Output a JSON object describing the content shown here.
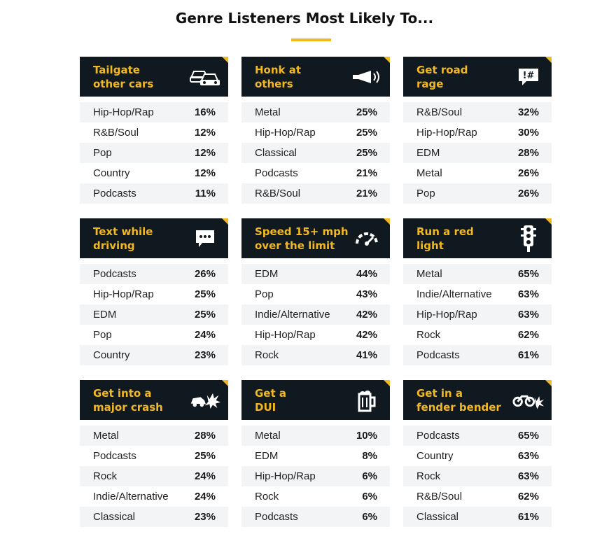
{
  "title": "Genre Listeners Most Likely To...",
  "colors": {
    "accent": "#f2b81f",
    "header_bg": "#101820",
    "row_alt": "#f3f4f6"
  },
  "chart_data": {
    "type": "table",
    "title": "Genre Listeners Most Likely To...",
    "panels": [
      {
        "title": "Tailgate\nother cars",
        "icon": "cars-icon",
        "rows": [
          {
            "genre": "Hip-Hop/Rap",
            "value": "16%"
          },
          {
            "genre": "R&B/Soul",
            "value": "12%"
          },
          {
            "genre": "Pop",
            "value": "12%"
          },
          {
            "genre": "Country",
            "value": "12%"
          },
          {
            "genre": "Podcasts",
            "value": "11%"
          }
        ]
      },
      {
        "title": "Honk at\nothers",
        "icon": "horn-icon",
        "rows": [
          {
            "genre": "Metal",
            "value": "25%"
          },
          {
            "genre": "Hip-Hop/Rap",
            "value": "25%"
          },
          {
            "genre": "Classical",
            "value": "25%"
          },
          {
            "genre": "Podcasts",
            "value": "21%"
          },
          {
            "genre": "R&B/Soul",
            "value": "21%"
          }
        ]
      },
      {
        "title": "Get road\nrage",
        "icon": "curse-bubble-icon",
        "rows": [
          {
            "genre": "R&B/Soul",
            "value": "32%"
          },
          {
            "genre": "Hip-Hop/Rap",
            "value": "30%"
          },
          {
            "genre": "EDM",
            "value": "28%"
          },
          {
            "genre": "Metal",
            "value": "26%"
          },
          {
            "genre": "Pop",
            "value": "26%"
          }
        ]
      },
      {
        "title": "Text while\ndriving",
        "icon": "chat-bubble-icon",
        "rows": [
          {
            "genre": "Podcasts",
            "value": "26%"
          },
          {
            "genre": "Hip-Hop/Rap",
            "value": "25%"
          },
          {
            "genre": "EDM",
            "value": "25%"
          },
          {
            "genre": "Pop",
            "value": "24%"
          },
          {
            "genre": "Country",
            "value": "23%"
          }
        ]
      },
      {
        "title": "Speed 15+ mph\nover the limit",
        "icon": "speedometer-icon",
        "rows": [
          {
            "genre": "EDM",
            "value": "44%"
          },
          {
            "genre": "Pop",
            "value": "43%"
          },
          {
            "genre": "Indie/Alternative",
            "value": "42%"
          },
          {
            "genre": "Hip-Hop/Rap",
            "value": "42%"
          },
          {
            "genre": "Rock",
            "value": "41%"
          }
        ]
      },
      {
        "title": "Run a red\nlight",
        "icon": "traffic-light-icon",
        "rows": [
          {
            "genre": "Metal",
            "value": "65%"
          },
          {
            "genre": "Indie/Alternative",
            "value": "63%"
          },
          {
            "genre": "Hip-Hop/Rap",
            "value": "63%"
          },
          {
            "genre": "Rock",
            "value": "62%"
          },
          {
            "genre": "Podcasts",
            "value": "61%"
          }
        ]
      },
      {
        "title": "Get into a\nmajor crash",
        "icon": "crash-icon",
        "rows": [
          {
            "genre": "Metal",
            "value": "28%"
          },
          {
            "genre": "Podcasts",
            "value": "25%"
          },
          {
            "genre": "Rock",
            "value": "24%"
          },
          {
            "genre": "Indie/Alternative",
            "value": "24%"
          },
          {
            "genre": "Classical",
            "value": "23%"
          }
        ]
      },
      {
        "title": "Get a\nDUI",
        "icon": "beer-mug-icon",
        "rows": [
          {
            "genre": "Metal",
            "value": "10%"
          },
          {
            "genre": "EDM",
            "value": "8%"
          },
          {
            "genre": "Hip-Hop/Rap",
            "value": "6%"
          },
          {
            "genre": "Rock",
            "value": "6%"
          },
          {
            "genre": "Podcasts",
            "value": "6%"
          }
        ]
      },
      {
        "title": "Get in a\nfender bender",
        "icon": "fender-bender-icon",
        "rows": [
          {
            "genre": "Podcasts",
            "value": "65%"
          },
          {
            "genre": "Country",
            "value": "63%"
          },
          {
            "genre": "Rock",
            "value": "63%"
          },
          {
            "genre": "R&B/Soul",
            "value": "62%"
          },
          {
            "genre": "Classical",
            "value": "61%"
          }
        ]
      }
    ]
  }
}
